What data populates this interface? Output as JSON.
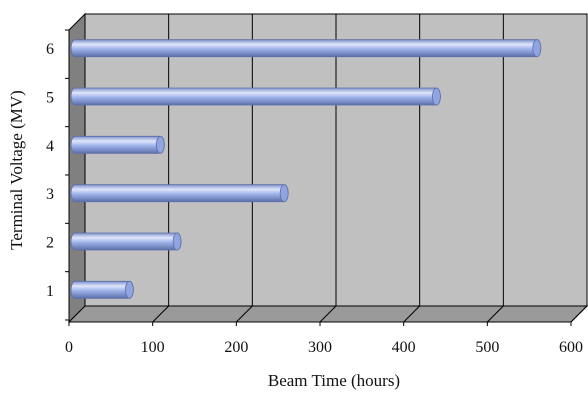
{
  "chart_data": {
    "type": "bar",
    "orientation": "horizontal",
    "style": "3d-cylinder",
    "title": "",
    "xlabel": "Beam Time (hours)",
    "ylabel": "Terminal Voltage (MV)",
    "categories": [
      "1",
      "2",
      "3",
      "4",
      "5",
      "6"
    ],
    "values": [
      65,
      122,
      250,
      102,
      432,
      552
    ],
    "xlim": [
      0,
      600
    ],
    "xticks": [
      "0",
      "100",
      "200",
      "300",
      "400",
      "500",
      "600"
    ],
    "grid": true,
    "legend": "none",
    "colors": {
      "bar": "#8fa4e0",
      "bar_highlight": "#dfe6fb",
      "bar_shadow": "#5d6fa8",
      "back_wall": "#c0c0c0",
      "floor": "#9a9a9a",
      "side_wall": "#808080",
      "gridline": "#000000"
    }
  }
}
